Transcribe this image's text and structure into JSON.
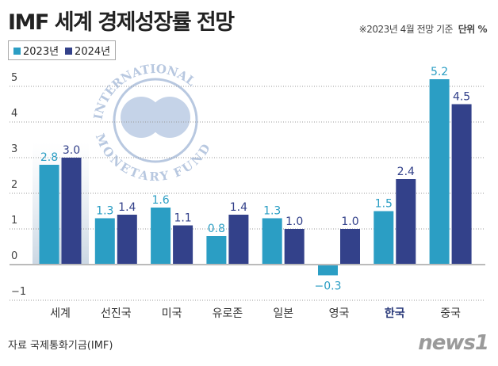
{
  "header": {
    "title": "IMF 세계 경제성장률 전망",
    "note": "※2023년 4월 전망 기준",
    "unit": "단위 %"
  },
  "footer": {
    "source": "자료 국제통화기금(IMF)",
    "logo": "news1"
  },
  "watermark": {
    "top": "INTERNATIONAL",
    "bottom": "MONETARY FUND"
  },
  "colors": {
    "2023": "#2b9ec4",
    "2024": "#33418a",
    "highlight_label": "#2a3a7a"
  },
  "chart_data": {
    "type": "bar",
    "categories": [
      "세계",
      "선진국",
      "미국",
      "유로존",
      "일본",
      "영국",
      "한국",
      "중국"
    ],
    "series": [
      {
        "name": "2023년",
        "values": [
          2.8,
          1.3,
          1.6,
          0.8,
          1.3,
          -0.3,
          1.5,
          5.2
        ]
      },
      {
        "name": "2024년",
        "values": [
          3.0,
          1.4,
          1.1,
          1.4,
          1.0,
          1.0,
          2.4,
          4.5
        ]
      }
    ],
    "value_labels": [
      [
        "2.8",
        "1.3",
        "1.6",
        "0.8",
        "1.3",
        "−0.3",
        "1.5",
        "5.2"
      ],
      [
        "3.0",
        "1.4",
        "1.1",
        "1.4",
        "1.0",
        "1.0",
        "2.4",
        "4.5"
      ]
    ],
    "yticks": [
      "5",
      "4",
      "3",
      "2",
      "1",
      "0",
      "-1"
    ],
    "ylim": [
      -1,
      5
    ],
    "grid": true,
    "legend": "top-left",
    "highlight_category": "한국"
  }
}
